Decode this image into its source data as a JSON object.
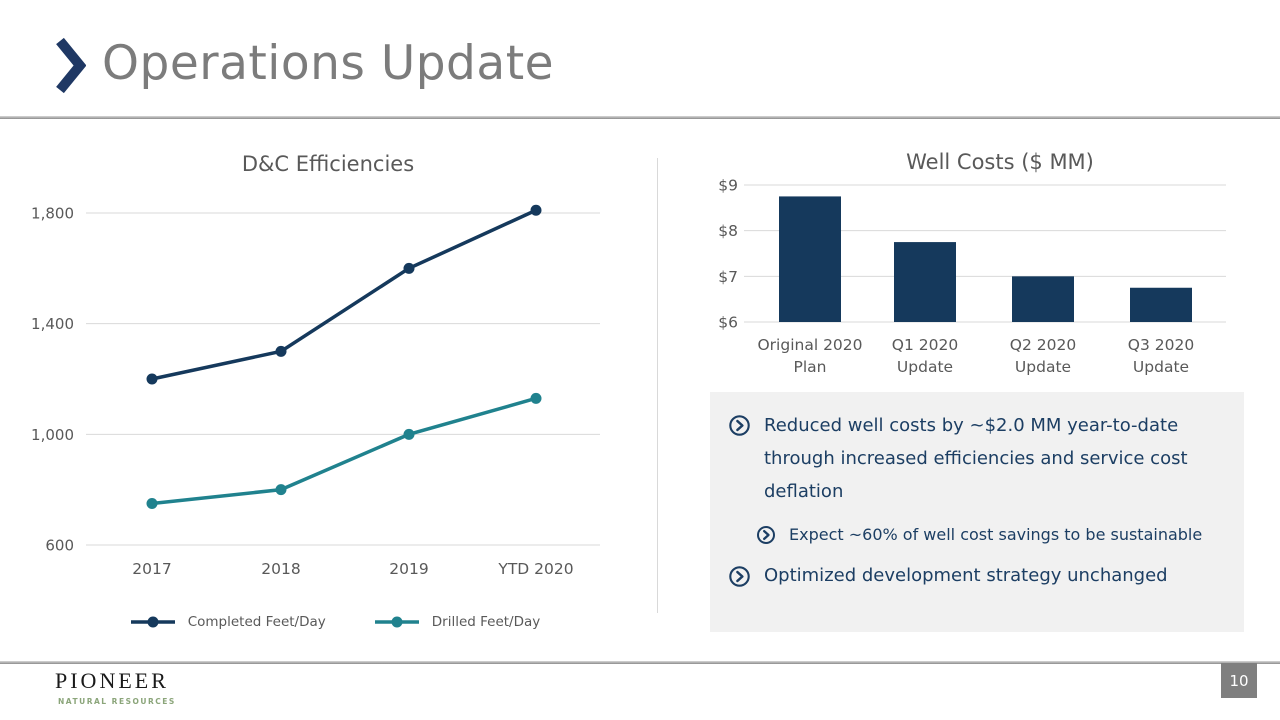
{
  "slide": {
    "title": "Operations Update",
    "page_number": "10",
    "logo_name": "PIONEER",
    "logo_subtitle": "NATURAL RESOURCES"
  },
  "colors": {
    "navy": "#15395C",
    "teal": "#20828E",
    "title_gray": "#7C7C7C",
    "chart_text": "#595959",
    "gridline": "#D9D9D9",
    "bullet_text": "#1C3E63",
    "panel_bg": "#F1F1F1",
    "badge_bg": "#7F7F7F",
    "logo_green": "#8BA57A",
    "logo_dark": "#1A1A1A",
    "chevron_navy": "#1F3864"
  },
  "chart_data": [
    {
      "type": "line",
      "title": "D&C Efficiencies",
      "categories": [
        "2017",
        "2018",
        "2019",
        "YTD 2020"
      ],
      "series": [
        {
          "name": "Completed Feet/Day",
          "color_key": "navy",
          "values": [
            1200,
            1300,
            1600,
            1810
          ]
        },
        {
          "name": "Drilled Feet/Day",
          "color_key": "teal",
          "values": [
            750,
            800,
            1000,
            1130
          ]
        }
      ],
      "yticks": [
        600,
        1000,
        1400,
        1800
      ],
      "ytick_labels": [
        "600",
        "1,000",
        "1,400",
        "1,800"
      ],
      "ylim": [
        600,
        1900
      ],
      "grid": true,
      "legend_position": "bottom"
    },
    {
      "type": "bar",
      "title": "Well Costs ($ MM)",
      "categories": [
        [
          "Original 2020",
          "Plan"
        ],
        [
          "Q1 2020",
          "Update"
        ],
        [
          "Q2 2020",
          "Update"
        ],
        [
          "Q3 2020",
          "Update"
        ]
      ],
      "values": [
        8.75,
        7.75,
        7.0,
        6.75
      ],
      "yticks": [
        6,
        7,
        8,
        9
      ],
      "ytick_labels": [
        "$6",
        "$7",
        "$8",
        "$9"
      ],
      "ylim": [
        6,
        9
      ],
      "grid": true,
      "legend_position": "none"
    }
  ],
  "bullets": [
    {
      "level": 1,
      "text": "Reduced well costs by ~$2.0 MM year-to-date through increased efficiencies and service cost deflation"
    },
    {
      "level": 2,
      "text": "Expect ~60% of well cost savings to be sustainable"
    },
    {
      "level": 1,
      "text": "Optimized development strategy unchanged"
    }
  ]
}
